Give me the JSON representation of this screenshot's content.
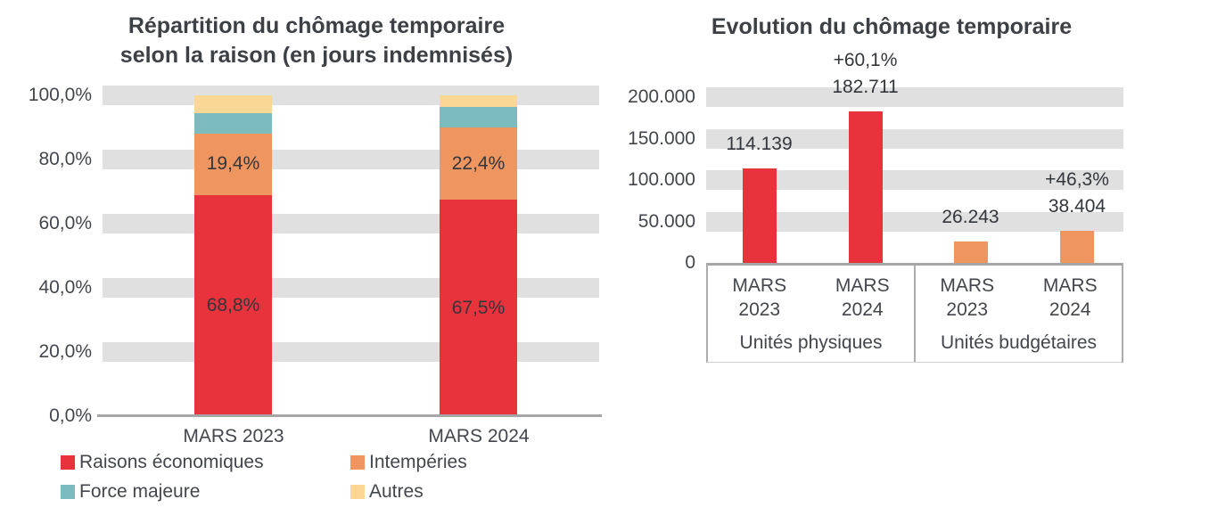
{
  "palette": {
    "red": "#E8333C",
    "orange": "#EF9560",
    "teal": "#7CBCBE",
    "yellow": "#FBD795",
    "gridband_gray": "#E0E0E1",
    "axis_gray": "#A6A6A6",
    "text_gray": "#43464C"
  },
  "chart_data": [
    {
      "type": "bar",
      "stacked": true,
      "percent": true,
      "title": "Répartition du chômage temporaire selon la raison (en jours indemnisés)",
      "title_lines": [
        "Répartition du chômage temporaire",
        "selon la raison (en jours indemnisés)"
      ],
      "categories": [
        "MARS 2023",
        "MARS 2024"
      ],
      "series": [
        {
          "name": "Raisons économiques",
          "color": "#E8333C",
          "values": [
            68.8,
            67.5
          ],
          "labels": [
            "68,8%",
            "67,5%"
          ]
        },
        {
          "name": "Intempéries",
          "color": "#EF9560",
          "values": [
            19.4,
            22.4
          ],
          "labels": [
            "19,4%",
            "22,4%"
          ]
        },
        {
          "name": "Force majeure",
          "color": "#7CBCBE",
          "values": [
            6.3,
            6.4
          ],
          "labels": [
            "",
            ""
          ]
        },
        {
          "name": "Autres",
          "color": "#FBD795",
          "values": [
            5.5,
            3.7
          ],
          "labels": [
            "",
            ""
          ]
        }
      ],
      "ylabel": "",
      "xlabel": "",
      "ylim": [
        0,
        100
      ],
      "y_ticks": [
        "100,0%",
        "80,0%",
        "60,0%",
        "40,0%",
        "20,0%",
        "0,0%"
      ],
      "grid": "horizontal-bands",
      "legend_position": "bottom"
    },
    {
      "type": "bar",
      "title": "Evolution du chômage temporaire",
      "groups": [
        {
          "label": "Unités physiques",
          "color": "#E8333C",
          "categories": [
            "MARS 2023",
            "MARS 2024"
          ],
          "values": [
            114139,
            182711
          ],
          "value_labels": [
            "114.139",
            "182.711"
          ],
          "change_pct": 60.1,
          "change_label": "+60,1%"
        },
        {
          "label": "Unités budgétaires",
          "color": "#EF9560",
          "categories": [
            "MARS 2023",
            "MARS 2024"
          ],
          "values": [
            26243,
            38404
          ],
          "value_labels": [
            "26.243",
            "38.404"
          ],
          "change_pct": 46.3,
          "change_label": "+46,3%"
        }
      ],
      "ylabel": "",
      "xlabel": "",
      "ylim": [
        0,
        200000
      ],
      "y_ticks": [
        "200.000",
        "150.000",
        "100.000",
        "50.000",
        "0"
      ],
      "grid": "horizontal-bands",
      "legend_position": "none"
    }
  ]
}
